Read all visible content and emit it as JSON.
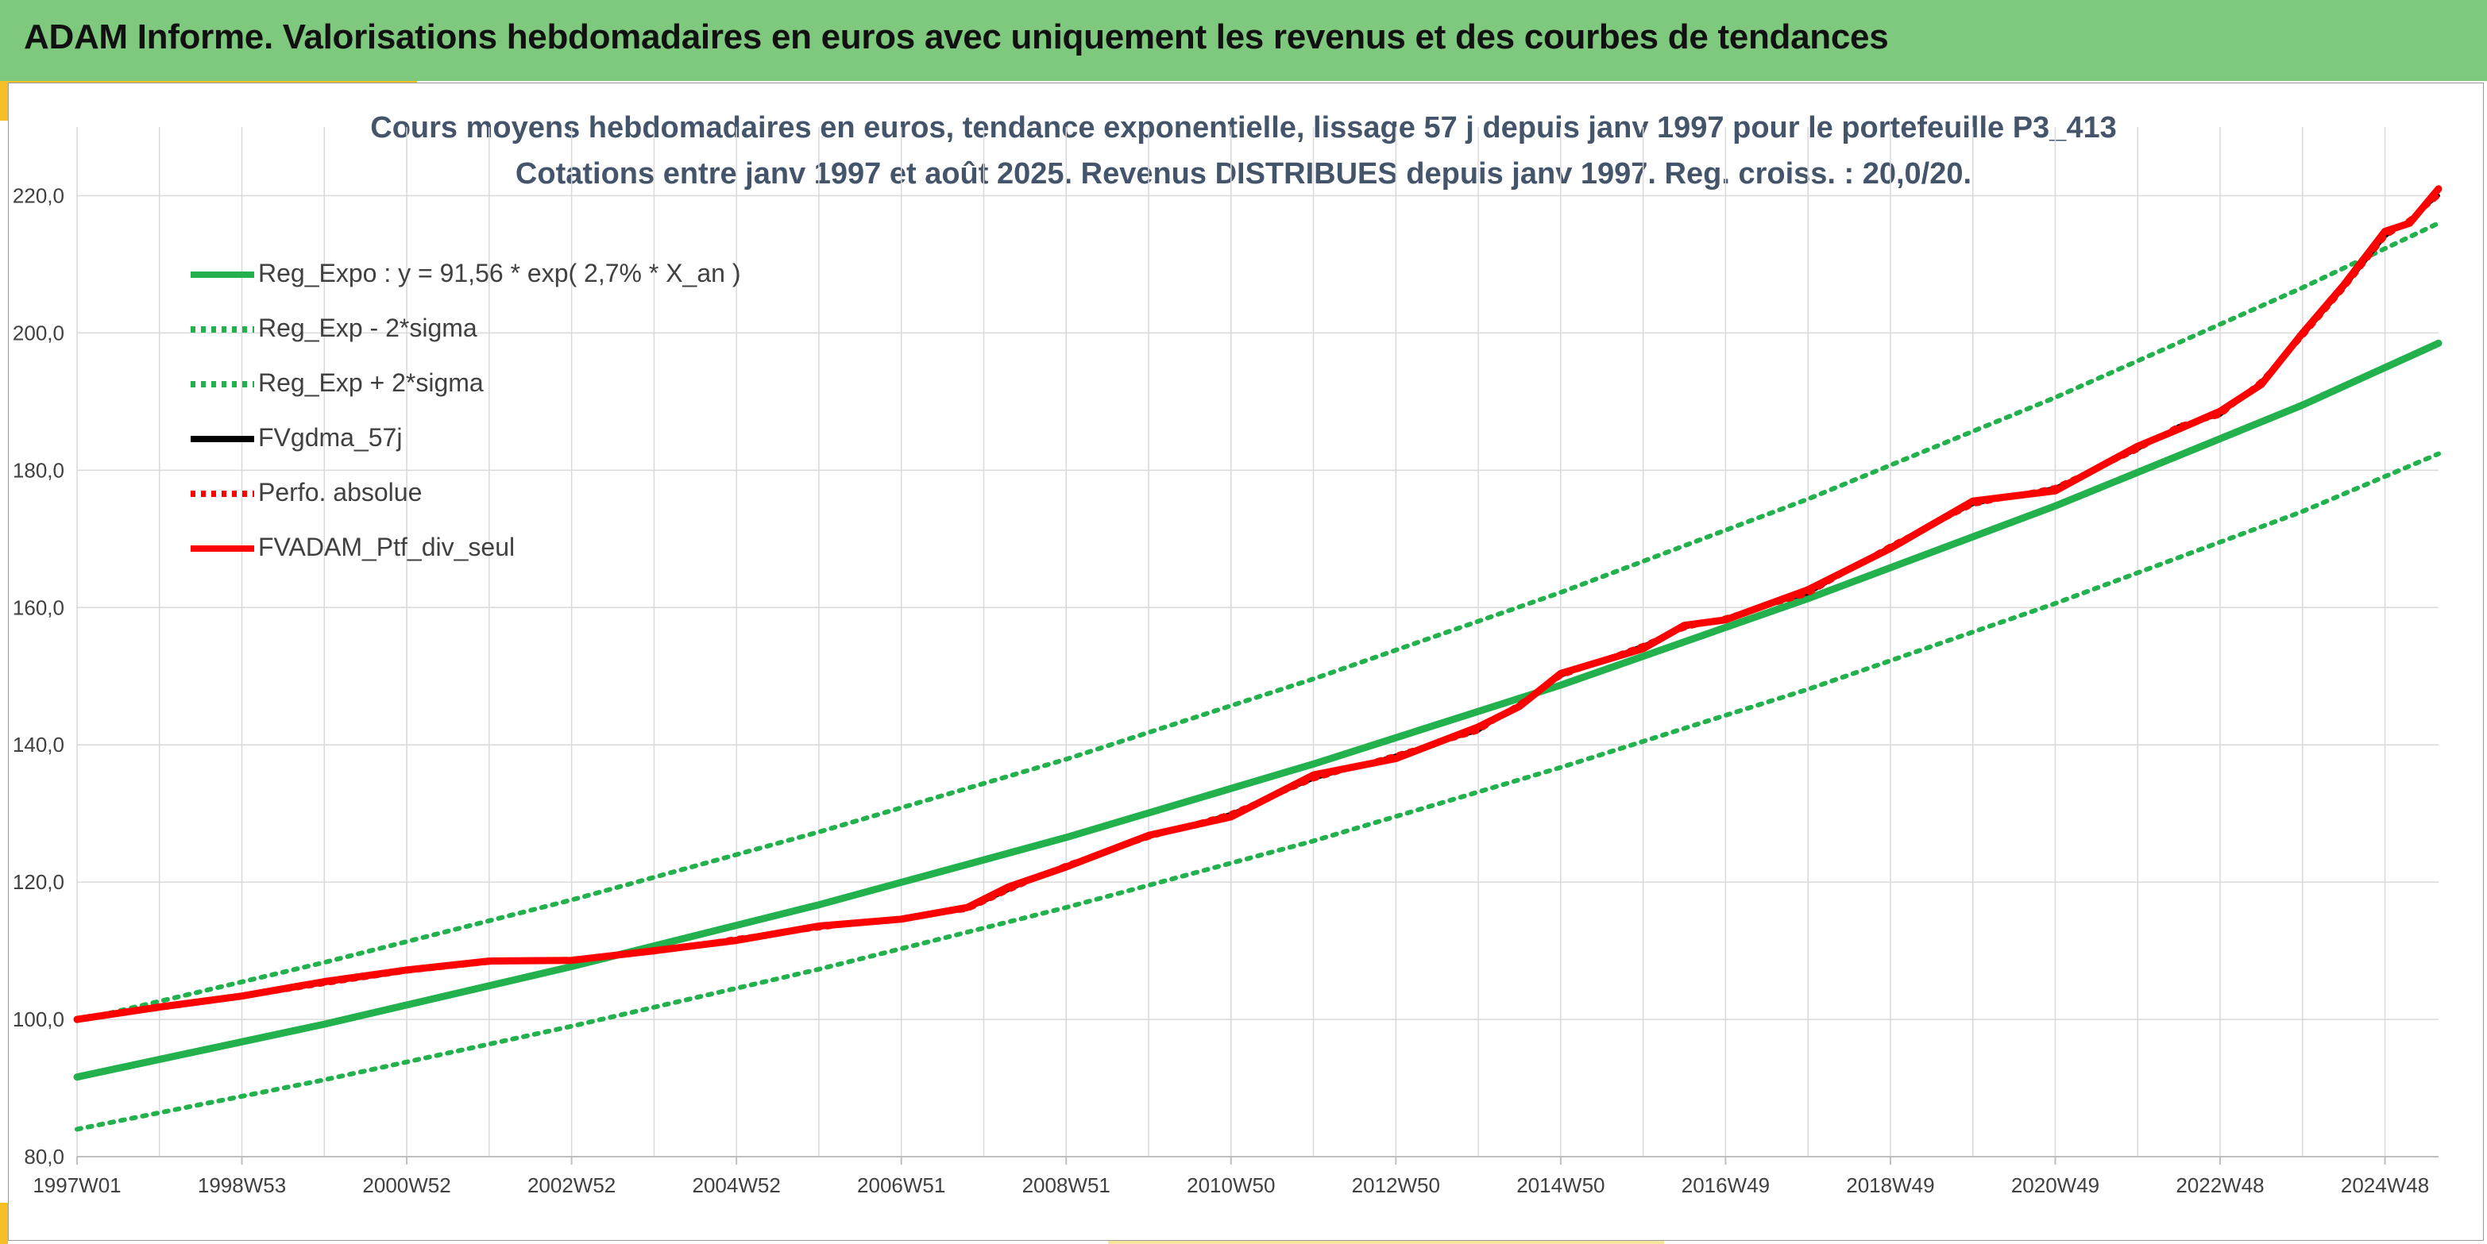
{
  "header": {
    "title": "ADAM Informe. Valorisations hebdomadaires en euros avec uniquement les revenus et des courbes de tendances"
  },
  "chart_data": {
    "type": "line",
    "title": "Cours moyens hebdomadaires en euros, tendance exponentielle, lissage 57 j depuis janv 1997 pour le portefeuille P3_413",
    "subtitle": "Cotations entre janv 1997 et août 2025. Revenus DISTRIBUES depuis janv 1997. Reg. croiss. : 20,0/20.",
    "xlabel": "",
    "ylabel": "",
    "x_tick_labels": [
      "1997W01",
      "1998W53",
      "2000W52",
      "2002W52",
      "2004W52",
      "2006W51",
      "2008W51",
      "2010W50",
      "2012W50",
      "2014W50",
      "2016W49",
      "2018W49",
      "2020W49",
      "2022W48",
      "2024W48"
    ],
    "x_range": [
      1997.0,
      2025.65
    ],
    "y_ticks": [
      "80,0",
      "100,0",
      "120,0",
      "140,0",
      "160,0",
      "180,0",
      "200,0",
      "220,0"
    ],
    "ylim": [
      80,
      230
    ],
    "grid": true,
    "legend_position": "top-left",
    "colors": {
      "green": "#22b14c",
      "black": "#000000",
      "red": "#ff0000"
    },
    "series": [
      {
        "name": "Reg_Expo : y = 91,56 * exp( 2,7% *  X_an )",
        "style": "solid",
        "color": "#22b14c",
        "width": 9,
        "x": [
          1997.0,
          2000.0,
          2003.0,
          2006.0,
          2009.0,
          2012.0,
          2015.0,
          2018.0,
          2021.0,
          2024.0,
          2025.65
        ],
        "y": [
          91.6,
          99.3,
          107.7,
          116.7,
          126.5,
          137.2,
          148.7,
          161.3,
          174.8,
          189.5,
          198.5
        ]
      },
      {
        "name": "Reg_Exp - 2*sigma",
        "style": "dotted",
        "color": "#22b14c",
        "width": 6,
        "x": [
          1997.0,
          2000.0,
          2003.0,
          2006.0,
          2009.0,
          2012.0,
          2015.0,
          2018.0,
          2021.0,
          2024.0,
          2025.65
        ],
        "y": [
          84.0,
          91.2,
          99.0,
          107.3,
          116.3,
          126.0,
          136.7,
          148.1,
          160.6,
          174.0,
          182.4
        ]
      },
      {
        "name": "Reg_Exp + 2*sigma",
        "style": "dotted",
        "color": "#22b14c",
        "width": 6,
        "x": [
          1997.0,
          2000.0,
          2003.0,
          2006.0,
          2009.0,
          2012.0,
          2015.0,
          2018.0,
          2021.0,
          2024.0,
          2025.65
        ],
        "y": [
          99.8,
          108.3,
          117.4,
          127.3,
          137.9,
          149.6,
          162.2,
          175.8,
          190.6,
          206.6,
          216.0
        ]
      },
      {
        "name": "FVgdma_57j",
        "style": "solid",
        "color": "#000000",
        "width": 4,
        "x": [
          1997.0,
          1998.0,
          1999.0,
          2000.0,
          2001.0,
          2002.0,
          2003.0,
          2004.0,
          2005.0,
          2006.0,
          2007.0,
          2007.8,
          2008.3,
          2009.0,
          2010.0,
          2011.0,
          2012.0,
          2013.0,
          2014.0,
          2014.5,
          2015.0,
          2016.0,
          2016.5,
          2017.0,
          2018.0,
          2019.0,
          2020.0,
          2021.0,
          2022.0,
          2022.5,
          2023.0,
          2023.5,
          2024.0,
          2024.5,
          2025.0,
          2025.3,
          2025.65
        ],
        "y": [
          100.0,
          101.6,
          103.3,
          105.2,
          107.0,
          108.3,
          108.8,
          109.8,
          111.8,
          113.3,
          114.8,
          116.0,
          118.8,
          122.5,
          126.5,
          130.0,
          135.0,
          138.5,
          142.0,
          146.0,
          150.0,
          154.5,
          157.0,
          158.5,
          162.0,
          169.0,
          175.0,
          177.5,
          183.0,
          186.5,
          188.0,
          193.0,
          199.5,
          206.5,
          214.0,
          216.5,
          220.0
        ]
      },
      {
        "name": "Perfo. absolue",
        "style": "dotted",
        "color": "#ff0000",
        "width": 6,
        "x": [
          1997.0,
          1998.0,
          1999.0,
          2000.0,
          2001.0,
          2002.0,
          2003.0,
          2004.0,
          2005.0,
          2006.0,
          2007.0,
          2007.8,
          2008.3,
          2009.0,
          2010.0,
          2011.0,
          2012.0,
          2013.0,
          2014.0,
          2014.5,
          2015.0,
          2016.0,
          2016.5,
          2017.0,
          2018.0,
          2019.0,
          2020.0,
          2021.0,
          2022.0,
          2022.5,
          2023.0,
          2023.5,
          2024.0,
          2024.5,
          2025.0,
          2025.3,
          2025.65
        ],
        "y": [
          100.0,
          101.6,
          103.3,
          105.2,
          107.0,
          108.3,
          108.8,
          109.8,
          111.8,
          113.3,
          114.8,
          116.0,
          118.8,
          122.5,
          126.5,
          130.0,
          135.0,
          138.5,
          142.0,
          146.0,
          150.0,
          154.5,
          157.0,
          158.5,
          162.0,
          169.0,
          175.0,
          177.5,
          183.0,
          186.5,
          188.0,
          193.0,
          199.5,
          206.5,
          214.0,
          216.5,
          220.0
        ]
      },
      {
        "name": "FVADAM_Ptf_div_seul",
        "style": "solid",
        "color": "#ff0000",
        "width": 9,
        "x": [
          1997.0,
          1998.0,
          1999.0,
          2000.0,
          2001.0,
          2002.0,
          2003.0,
          2004.0,
          2005.0,
          2006.0,
          2007.0,
          2007.8,
          2008.3,
          2009.0,
          2010.0,
          2011.0,
          2012.0,
          2013.0,
          2014.0,
          2014.5,
          2015.0,
          2016.0,
          2016.5,
          2017.0,
          2018.0,
          2019.0,
          2020.0,
          2021.0,
          2022.0,
          2022.5,
          2023.0,
          2023.5,
          2024.0,
          2024.5,
          2025.0,
          2025.3,
          2025.65
        ],
        "y": [
          100.0,
          101.8,
          103.4,
          105.5,
          107.2,
          108.5,
          108.6,
          110.0,
          111.5,
          113.6,
          114.6,
          116.3,
          119.3,
          122.2,
          126.8,
          129.5,
          135.6,
          138.0,
          142.6,
          145.6,
          150.4,
          154.0,
          157.4,
          158.2,
          162.6,
          168.6,
          175.5,
          177.0,
          183.5,
          186.0,
          188.6,
          192.5,
          200.0,
          207.0,
          214.8,
          216.0,
          221.0
        ]
      }
    ]
  }
}
